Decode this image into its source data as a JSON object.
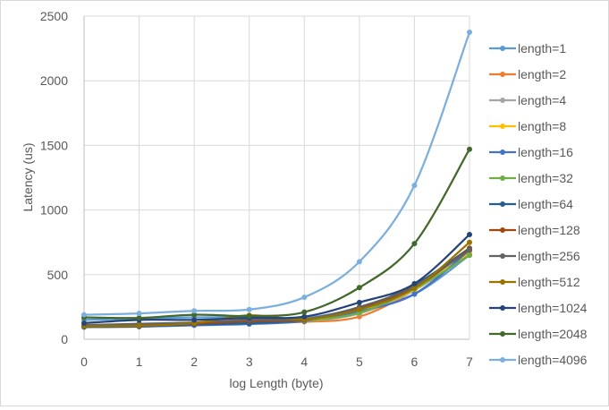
{
  "chart_data": {
    "type": "line",
    "xlabel": "log Length (byte)",
    "ylabel": "Latency (us)",
    "x": [
      0,
      1,
      2,
      3,
      4,
      5,
      6,
      7
    ],
    "xlim": [
      0,
      7
    ],
    "ylim": [
      0,
      2500
    ],
    "yticks": [
      0,
      500,
      1000,
      1500,
      2000,
      2500
    ],
    "xticks": [
      0,
      1,
      2,
      3,
      4,
      5,
      6,
      7
    ],
    "grid": true,
    "legend_position": "right",
    "series": [
      {
        "name": "length=1",
        "color": "#5b9bd5",
        "values": [
          150,
          160,
          170,
          170,
          165,
          240,
          350,
          650
        ]
      },
      {
        "name": "length=2",
        "color": "#ed7d31",
        "values": [
          95,
          98,
          110,
          130,
          135,
          175,
          380,
          660
        ]
      },
      {
        "name": "length=4",
        "color": "#a5a5a5",
        "values": [
          100,
          105,
          115,
          130,
          140,
          200,
          380,
          665
        ]
      },
      {
        "name": "length=8",
        "color": "#ffc000",
        "values": [
          100,
          103,
          115,
          130,
          140,
          210,
          385,
          670
        ]
      },
      {
        "name": "length=16",
        "color": "#4472c4",
        "values": [
          95,
          98,
          108,
          118,
          140,
          215,
          350,
          690
        ]
      },
      {
        "name": "length=32",
        "color": "#70ad47",
        "values": [
          100,
          110,
          120,
          130,
          145,
          205,
          390,
          650
        ]
      },
      {
        "name": "length=64",
        "color": "#255e91",
        "values": [
          95,
          100,
          115,
          125,
          150,
          240,
          420,
          705
        ]
      },
      {
        "name": "length=128",
        "color": "#9e480e",
        "values": [
          105,
          110,
          120,
          140,
          150,
          245,
          400,
          700
        ]
      },
      {
        "name": "length=256",
        "color": "#636363",
        "values": [
          110,
          120,
          130,
          150,
          155,
          250,
          410,
          690
        ]
      },
      {
        "name": "length=512",
        "color": "#997300",
        "values": [
          100,
          105,
          125,
          185,
          155,
          230,
          395,
          750
        ]
      },
      {
        "name": "length=1024",
        "color": "#264478",
        "values": [
          125,
          150,
          150,
          165,
          175,
          285,
          430,
          810
        ]
      },
      {
        "name": "length=2048",
        "color": "#43682b",
        "values": [
          170,
          165,
          190,
          180,
          210,
          400,
          740,
          1470
        ]
      },
      {
        "name": "length=4096",
        "color": "#7cafdd",
        "values": [
          190,
          200,
          220,
          230,
          325,
          600,
          1190,
          2375
        ]
      }
    ]
  }
}
